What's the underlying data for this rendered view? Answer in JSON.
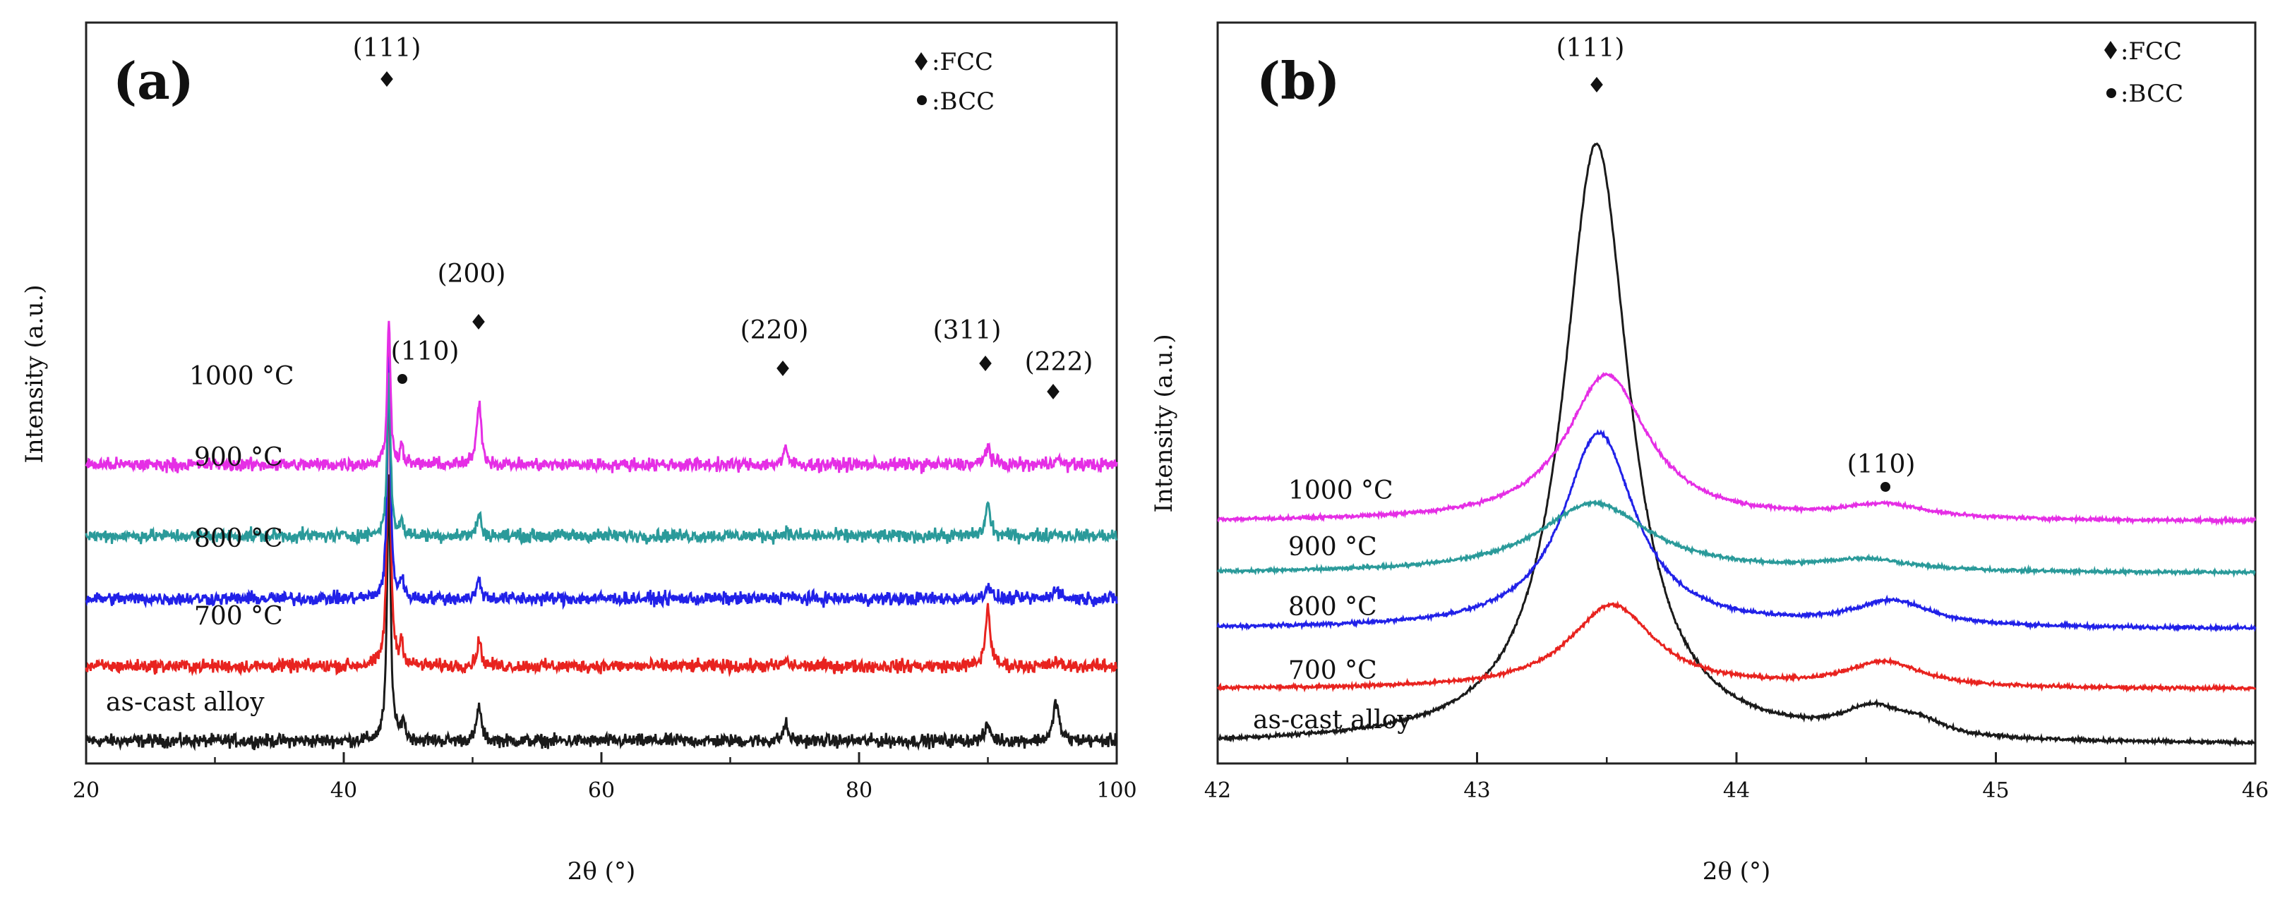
{
  "figure": {
    "legend": {
      "fcc": ":FCC",
      "bcc": ":BCC"
    }
  },
  "chart_data": [
    {
      "panel": "(a)",
      "type": "line",
      "xlabel": "2θ (°)",
      "ylabel": "Intensity (a.u.)",
      "xlim": [
        20,
        100
      ],
      "xticks": [
        20,
        40,
        60,
        80,
        100
      ],
      "yticks_shown": false,
      "noise": 0.55,
      "series": [
        {
          "name": "as-cast alloy",
          "color": "#1a1a1a",
          "baseline": 0.0,
          "peaks": [
            [
              43.5,
              22,
              0.16
            ],
            [
              44.6,
              1.8,
              0.15
            ],
            [
              50.5,
              3.0,
              0.2
            ],
            [
              74.3,
              1.5,
              0.2
            ],
            [
              90.0,
              1.3,
              0.25
            ],
            [
              95.3,
              3.4,
              0.25
            ]
          ]
        },
        {
          "name": "700 °C",
          "color": "#e8231f",
          "baseline": 6.3,
          "peaks": [
            [
              43.5,
              26,
              0.15
            ],
            [
              44.5,
              2.0,
              0.15
            ],
            [
              50.5,
              2.2,
              0.2
            ],
            [
              74.3,
              0.5,
              0.2
            ],
            [
              90.0,
              5.0,
              0.22
            ],
            [
              95.3,
              0.4,
              0.25
            ]
          ]
        },
        {
          "name": "800 °C",
          "color": "#2121e8",
          "baseline": 12.0,
          "peaks": [
            [
              43.5,
              20,
              0.15
            ],
            [
              44.5,
              1.6,
              0.15
            ],
            [
              50.5,
              1.6,
              0.2
            ],
            [
              74.3,
              0.4,
              0.2
            ],
            [
              90.0,
              1.2,
              0.22
            ],
            [
              95.3,
              1.0,
              0.25
            ]
          ]
        },
        {
          "name": "900 °C",
          "color": "#2a9a9a",
          "baseline": 17.3,
          "peaks": [
            [
              43.5,
              14,
              0.15
            ],
            [
              44.5,
              1.0,
              0.15
            ],
            [
              50.5,
              1.8,
              0.2
            ],
            [
              74.3,
              0.4,
              0.2
            ],
            [
              90.0,
              2.7,
              0.22
            ],
            [
              95.3,
              0.3,
              0.25
            ]
          ]
        },
        {
          "name": "1000 °C",
          "color": "#e52ee5",
          "baseline": 23.3,
          "peaks": [
            [
              43.5,
              12,
              0.15
            ],
            [
              44.5,
              1.5,
              0.15
            ],
            [
              50.5,
              5.5,
              0.2
            ],
            [
              74.3,
              1.3,
              0.2
            ],
            [
              90.0,
              1.7,
              0.22
            ],
            [
              95.3,
              0.6,
              0.25
            ]
          ]
        }
      ],
      "annotations": [
        {
          "text": "(111)",
          "x": 43.5,
          "marker": "diamond"
        },
        {
          "text": "(110)",
          "x": 44.6,
          "marker": "circle"
        },
        {
          "text": "(200)",
          "x": 50.5,
          "marker": "diamond"
        },
        {
          "text": "(220)",
          "x": 74.3,
          "marker": "diamond"
        },
        {
          "text": "(311)",
          "x": 90.0,
          "marker": "diamond"
        },
        {
          "text": "(222)",
          "x": 95.3,
          "marker": "diamond"
        }
      ]
    },
    {
      "panel": "(b)",
      "type": "line",
      "xlabel": "2θ (°)",
      "ylabel": "Intensity (a.u.)",
      "xlim": [
        42,
        46
      ],
      "xticks": [
        42,
        43,
        44,
        45,
        46
      ],
      "yticks_shown": false,
      "noise": 0.12,
      "series": [
        {
          "name": "as-cast alloy",
          "color": "#1a1a1a",
          "baseline": 0.0,
          "peaks": [
            [
              43.46,
              43,
              0.155
            ],
            [
              44.52,
              1.8,
              0.14
            ],
            [
              44.7,
              0.9,
              0.12
            ]
          ]
        },
        {
          "name": "700 °C",
          "color": "#e8231f",
          "baseline": 4.0,
          "peaks": [
            [
              43.52,
              6.0,
              0.2
            ],
            [
              44.57,
              1.8,
              0.18
            ]
          ]
        },
        {
          "name": "800 °C",
          "color": "#2121e8",
          "baseline": 8.3,
          "peaks": [
            [
              43.47,
              14,
              0.17
            ],
            [
              44.6,
              1.8,
              0.18
            ]
          ]
        },
        {
          "name": "900 °C",
          "color": "#2a9a9a",
          "baseline": 12.3,
          "peaks": [
            [
              43.45,
              5.0,
              0.26
            ],
            [
              44.5,
              0.8,
              0.2
            ]
          ]
        },
        {
          "name": "1000 °C",
          "color": "#e52ee5",
          "baseline": 16.0,
          "peaks": [
            [
              43.5,
              10.5,
              0.19
            ],
            [
              44.57,
              1.0,
              0.2
            ]
          ]
        }
      ],
      "annotations": [
        {
          "text": "(111)",
          "x": 43.46,
          "marker": "diamond"
        },
        {
          "text": "(110)",
          "x": 44.57,
          "marker": "circle"
        }
      ]
    }
  ]
}
